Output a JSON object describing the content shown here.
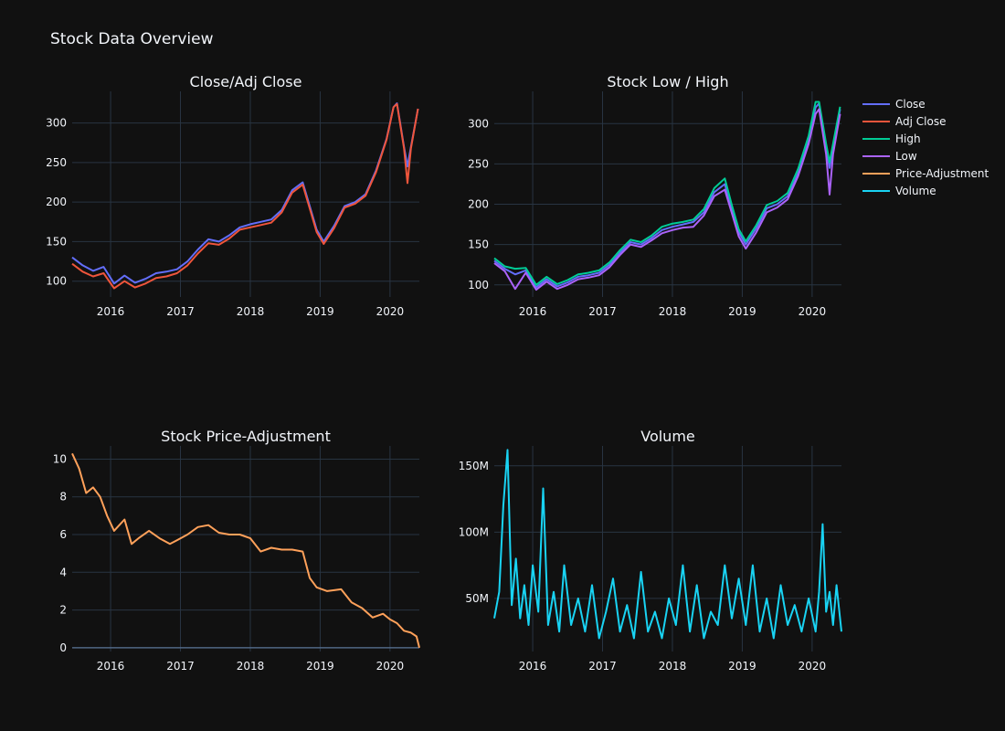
{
  "title": "Stock Data Overview",
  "chart_data": [
    {
      "id": "close-adj",
      "type": "line",
      "title": "Close/Adj Close",
      "x_ticks": [
        "2016",
        "2017",
        "2018",
        "2019",
        "2020"
      ],
      "y_ticks": [
        "100",
        "150",
        "200",
        "250",
        "300"
      ],
      "xlim": [
        2015.45,
        2020.42
      ],
      "ylim": [
        80,
        340
      ],
      "x": [
        2015.45,
        2015.6,
        2015.75,
        2015.9,
        2016.05,
        2016.2,
        2016.35,
        2016.5,
        2016.65,
        2016.8,
        2016.95,
        2017.1,
        2017.25,
        2017.4,
        2017.55,
        2017.7,
        2017.85,
        2018.0,
        2018.15,
        2018.3,
        2018.45,
        2018.6,
        2018.75,
        2018.85,
        2018.95,
        2019.05,
        2019.2,
        2019.35,
        2019.5,
        2019.65,
        2019.8,
        2019.95,
        2020.05,
        2020.1,
        2020.2,
        2020.25,
        2020.3,
        2020.4
      ],
      "series": [
        {
          "name": "Close",
          "color": "#636efa",
          "values": [
            130,
            120,
            113,
            118,
            97,
            107,
            98,
            103,
            110,
            112,
            115,
            125,
            140,
            153,
            150,
            158,
            168,
            172,
            175,
            178,
            190,
            215,
            225,
            195,
            165,
            150,
            170,
            195,
            200,
            210,
            240,
            280,
            320,
            325,
            270,
            245,
            270,
            318
          ]
        },
        {
          "name": "Adj Close",
          "color": "#EF553B",
          "values": [
            122,
            112,
            106,
            110,
            91,
            100,
            92,
            97,
            104,
            106,
            110,
            120,
            135,
            148,
            146,
            154,
            165,
            168,
            171,
            174,
            187,
            212,
            222,
            192,
            162,
            147,
            167,
            193,
            198,
            208,
            238,
            279,
            320,
            324,
            268,
            224,
            268,
            318
          ]
        }
      ]
    },
    {
      "id": "low-high",
      "type": "line",
      "title": "Stock Low / High",
      "x_ticks": [
        "2016",
        "2017",
        "2018",
        "2019",
        "2020"
      ],
      "y_ticks": [
        "100",
        "150",
        "200",
        "250",
        "300"
      ],
      "xlim": [
        2015.45,
        2020.42
      ],
      "ylim": [
        85,
        340
      ],
      "x": [
        2015.45,
        2015.6,
        2015.75,
        2015.9,
        2016.05,
        2016.2,
        2016.35,
        2016.5,
        2016.65,
        2016.8,
        2016.95,
        2017.1,
        2017.25,
        2017.4,
        2017.55,
        2017.7,
        2017.85,
        2018.0,
        2018.15,
        2018.3,
        2018.45,
        2018.6,
        2018.75,
        2018.85,
        2018.95,
        2019.05,
        2019.2,
        2019.35,
        2019.5,
        2019.65,
        2019.8,
        2019.95,
        2020.05,
        2020.1,
        2020.2,
        2020.25,
        2020.3,
        2020.4
      ],
      "series": [
        {
          "name": "Close",
          "color": "#636efa",
          "values": [
            130,
            120,
            113,
            118,
            97,
            107,
            98,
            103,
            110,
            112,
            115,
            125,
            140,
            153,
            150,
            158,
            168,
            172,
            175,
            178,
            190,
            215,
            225,
            195,
            165,
            150,
            170,
            195,
            200,
            210,
            240,
            280,
            320,
            325,
            270,
            245,
            270,
            318
          ]
        },
        {
          "name": "High",
          "color": "#00cc96",
          "values": [
            133,
            123,
            120,
            121,
            100,
            110,
            101,
            106,
            113,
            115,
            118,
            128,
            143,
            156,
            153,
            161,
            172,
            176,
            178,
            181,
            194,
            220,
            232,
            199,
            169,
            154,
            174,
            199,
            204,
            214,
            244,
            285,
            327,
            327,
            275,
            252,
            275,
            321
          ]
        },
        {
          "name": "Low",
          "color": "#ab63fa",
          "values": [
            127,
            117,
            95,
            115,
            94,
            104,
            95,
            100,
            107,
            109,
            112,
            122,
            137,
            150,
            147,
            155,
            164,
            168,
            171,
            172,
            186,
            210,
            218,
            189,
            160,
            145,
            165,
            190,
            196,
            206,
            235,
            275,
            312,
            318,
            262,
            212,
            262,
            312
          ]
        }
      ]
    },
    {
      "id": "price-adjustment",
      "type": "line",
      "title": "Stock Price-Adjustment",
      "x_ticks": [
        "2016",
        "2017",
        "2018",
        "2019",
        "2020"
      ],
      "y_ticks": [
        "0",
        "2",
        "4",
        "6",
        "8",
        "10"
      ],
      "xlim": [
        2015.45,
        2020.42
      ],
      "ylim": [
        -0.2,
        10.7
      ],
      "x": [
        2015.45,
        2015.55,
        2015.65,
        2015.75,
        2015.85,
        2015.95,
        2016.05,
        2016.2,
        2016.3,
        2016.4,
        2016.55,
        2016.7,
        2016.85,
        2016.95,
        2017.1,
        2017.25,
        2017.4,
        2017.55,
        2017.7,
        2017.85,
        2018.0,
        2018.15,
        2018.3,
        2018.45,
        2018.6,
        2018.75,
        2018.85,
        2018.95,
        2019.1,
        2019.3,
        2019.45,
        2019.6,
        2019.75,
        2019.9,
        2020.0,
        2020.1,
        2020.2,
        2020.3,
        2020.38,
        2020.42
      ],
      "series": [
        {
          "name": "Price-Adjustment",
          "color": "#FFA15A",
          "values": [
            10.3,
            9.5,
            8.2,
            8.5,
            8.0,
            7.0,
            6.2,
            6.8,
            5.5,
            5.8,
            6.2,
            5.8,
            5.5,
            5.7,
            6.0,
            6.4,
            6.5,
            6.1,
            6.0,
            6.0,
            5.8,
            5.1,
            5.3,
            5.2,
            5.2,
            5.1,
            3.7,
            3.2,
            3.0,
            3.1,
            2.4,
            2.1,
            1.6,
            1.8,
            1.5,
            1.3,
            0.9,
            0.8,
            0.6,
            0.0
          ]
        }
      ]
    },
    {
      "id": "volume",
      "type": "line",
      "title": "Volume",
      "x_ticks": [
        "2016",
        "2017",
        "2018",
        "2019",
        "2020"
      ],
      "y_ticks": [
        "50M",
        "100M",
        "150M"
      ],
      "y_tick_values": [
        50000000,
        100000000,
        150000000
      ],
      "xlim": [
        2015.45,
        2020.42
      ],
      "ylim": [
        10000000,
        165000000
      ],
      "x": [
        2015.45,
        2015.52,
        2015.58,
        2015.64,
        2015.7,
        2015.76,
        2015.82,
        2015.88,
        2015.94,
        2016.0,
        2016.08,
        2016.15,
        2016.22,
        2016.3,
        2016.38,
        2016.45,
        2016.55,
        2016.65,
        2016.75,
        2016.85,
        2016.95,
        2017.05,
        2017.15,
        2017.25,
        2017.35,
        2017.45,
        2017.55,
        2017.65,
        2017.75,
        2017.85,
        2017.95,
        2018.05,
        2018.15,
        2018.25,
        2018.35,
        2018.45,
        2018.55,
        2018.65,
        2018.75,
        2018.85,
        2018.95,
        2019.05,
        2019.15,
        2019.25,
        2019.35,
        2019.45,
        2019.55,
        2019.65,
        2019.75,
        2019.85,
        2019.95,
        2020.05,
        2020.1,
        2020.15,
        2020.2,
        2020.25,
        2020.3,
        2020.35,
        2020.42
      ],
      "series": [
        {
          "name": "Volume",
          "color": "#19d3f3",
          "values": [
            35000000,
            55000000,
            120000000,
            162000000,
            45000000,
            80000000,
            35000000,
            60000000,
            30000000,
            75000000,
            40000000,
            133000000,
            30000000,
            55000000,
            25000000,
            75000000,
            30000000,
            50000000,
            25000000,
            60000000,
            20000000,
            40000000,
            65000000,
            25000000,
            45000000,
            20000000,
            70000000,
            25000000,
            40000000,
            20000000,
            50000000,
            30000000,
            75000000,
            25000000,
            60000000,
            20000000,
            40000000,
            30000000,
            75000000,
            35000000,
            65000000,
            30000000,
            75000000,
            25000000,
            50000000,
            20000000,
            60000000,
            30000000,
            45000000,
            25000000,
            50000000,
            25000000,
            55000000,
            106000000,
            40000000,
            55000000,
            30000000,
            60000000,
            25000000
          ]
        }
      ]
    }
  ],
  "legend": {
    "placement": "top-right",
    "items": [
      {
        "label": "Close",
        "color": "#636efa"
      },
      {
        "label": "Adj Close",
        "color": "#EF553B"
      },
      {
        "label": "High",
        "color": "#00cc96"
      },
      {
        "label": "Low",
        "color": "#ab63fa"
      },
      {
        "label": "Price-Adjustment",
        "color": "#FFA15A"
      },
      {
        "label": "Volume",
        "color": "#19d3f3"
      }
    ]
  }
}
